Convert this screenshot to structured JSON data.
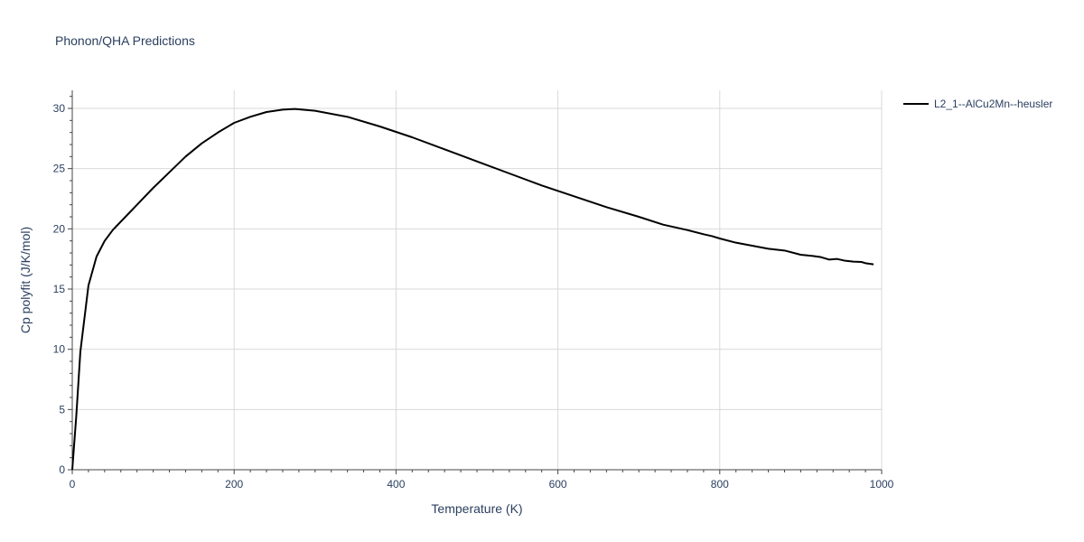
{
  "chart_data": {
    "type": "line",
    "title": "Phonon/QHA Predictions",
    "xlabel": "Temperature (K)",
    "ylabel": "Cp polyfit (J/K/mol)",
    "xlim": [
      0,
      1000
    ],
    "ylim": [
      0,
      31.5
    ],
    "x_ticks": [
      0,
      200,
      400,
      600,
      800,
      1000
    ],
    "x_tick_labels": [
      "0",
      "200",
      "400",
      "600",
      "800",
      "1000"
    ],
    "y_ticks": [
      0,
      5,
      10,
      15,
      20,
      25,
      30
    ],
    "y_tick_labels": [
      "0",
      "5",
      "10",
      "15",
      "20",
      "25",
      "30"
    ],
    "grid": true,
    "legend_position": "top-right",
    "series": [
      {
        "name": "L2_1--AlCu2Mn--heusler",
        "color": "#000000",
        "x": [
          0,
          5,
          10,
          20,
          30,
          40,
          50,
          60,
          70,
          80,
          90,
          100,
          120,
          140,
          160,
          180,
          200,
          220,
          240,
          260,
          275,
          300,
          340,
          380,
          420,
          460,
          500,
          540,
          580,
          620,
          660,
          700,
          730,
          760,
          780,
          790,
          800,
          820,
          840,
          860,
          880,
          900,
          915,
          925,
          935,
          945,
          955,
          965,
          975,
          980,
          990
        ],
        "y": [
          0,
          4.5,
          9.8,
          15.3,
          17.7,
          19.0,
          19.9,
          20.6,
          21.3,
          22.0,
          22.7,
          23.4,
          24.7,
          26.0,
          27.1,
          28.0,
          28.8,
          29.3,
          29.7,
          29.9,
          29.95,
          29.8,
          29.3,
          28.5,
          27.6,
          26.6,
          25.6,
          24.6,
          23.6,
          22.7,
          21.8,
          21.0,
          20.35,
          19.9,
          19.55,
          19.4,
          19.2,
          18.85,
          18.6,
          18.35,
          18.2,
          17.85,
          17.75,
          17.65,
          17.45,
          17.5,
          17.35,
          17.28,
          17.25,
          17.15,
          17.05
        ]
      }
    ]
  }
}
